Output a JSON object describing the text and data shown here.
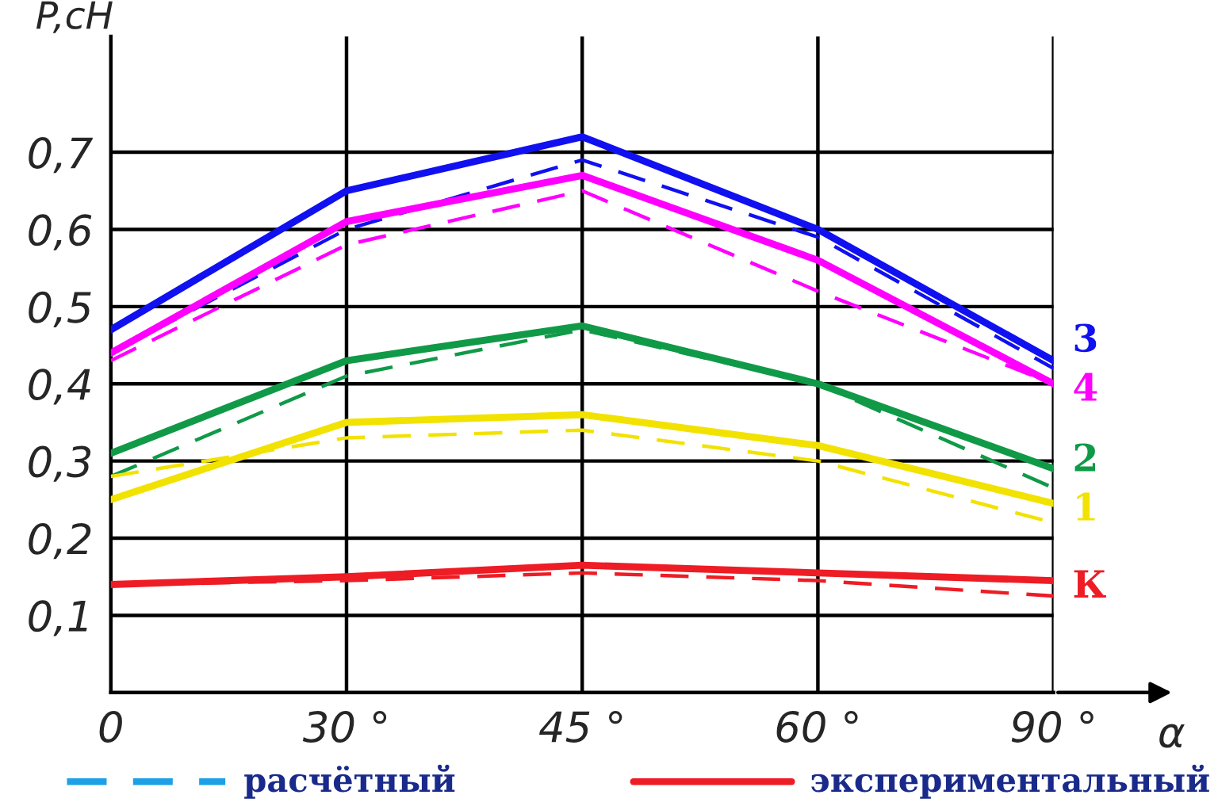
{
  "chart_data": {
    "type": "line",
    "ylabel": "P,cH",
    "xlabel": "α",
    "categories": [
      "0",
      "30 °",
      "45 °",
      "60 °",
      "90 °"
    ],
    "ylim": [
      0,
      0.85
    ],
    "yticks": [
      {
        "value": 0.1,
        "label": "0,1"
      },
      {
        "value": 0.2,
        "label": "0,2"
      },
      {
        "value": 0.3,
        "label": "0,3"
      },
      {
        "value": 0.4,
        "label": "0,4"
      },
      {
        "value": 0.5,
        "label": "0,5"
      },
      {
        "value": 0.6,
        "label": "0,6"
      },
      {
        "value": 0.7,
        "label": "0,7"
      }
    ],
    "grid": true,
    "marker": "none",
    "series": [
      {
        "name": "3",
        "color": "#1010f0",
        "line_style": "solid",
        "values": [
          0.47,
          0.65,
          0.72,
          0.6,
          0.43
        ]
      },
      {
        "color": "#1010f0",
        "line_style": "dashed",
        "values": [
          0.44,
          0.6,
          0.69,
          0.59,
          0.42
        ]
      },
      {
        "name": "4",
        "color": "#ff00ff",
        "line_style": "solid",
        "values": [
          0.44,
          0.61,
          0.67,
          0.56,
          0.4
        ]
      },
      {
        "color": "#ff00ff",
        "line_style": "dashed",
        "values": [
          0.43,
          0.58,
          0.65,
          0.52,
          0.4
        ]
      },
      {
        "name": "2",
        "color": "#109a48",
        "line_style": "solid",
        "values": [
          0.31,
          0.43,
          0.475,
          0.4,
          0.29
        ]
      },
      {
        "color": "#109a48",
        "line_style": "dashed",
        "values": [
          0.28,
          0.41,
          0.47,
          0.4,
          0.265
        ]
      },
      {
        "name": "1",
        "color": "#f2e200",
        "line_style": "solid",
        "values": [
          0.25,
          0.35,
          0.36,
          0.32,
          0.245
        ]
      },
      {
        "color": "#f2e200",
        "line_style": "dashed",
        "values": [
          0.28,
          0.33,
          0.34,
          0.3,
          0.22
        ]
      },
      {
        "name": "К",
        "color": "#ee1c24",
        "line_style": "solid",
        "values": [
          0.14,
          0.15,
          0.165,
          0.155,
          0.145
        ]
      },
      {
        "color": "#ee1c24",
        "line_style": "dashed",
        "values": [
          0.14,
          0.145,
          0.155,
          0.145,
          0.125
        ]
      }
    ],
    "annotations": [
      "расчётный",
      "экспериментальный"
    ]
  }
}
